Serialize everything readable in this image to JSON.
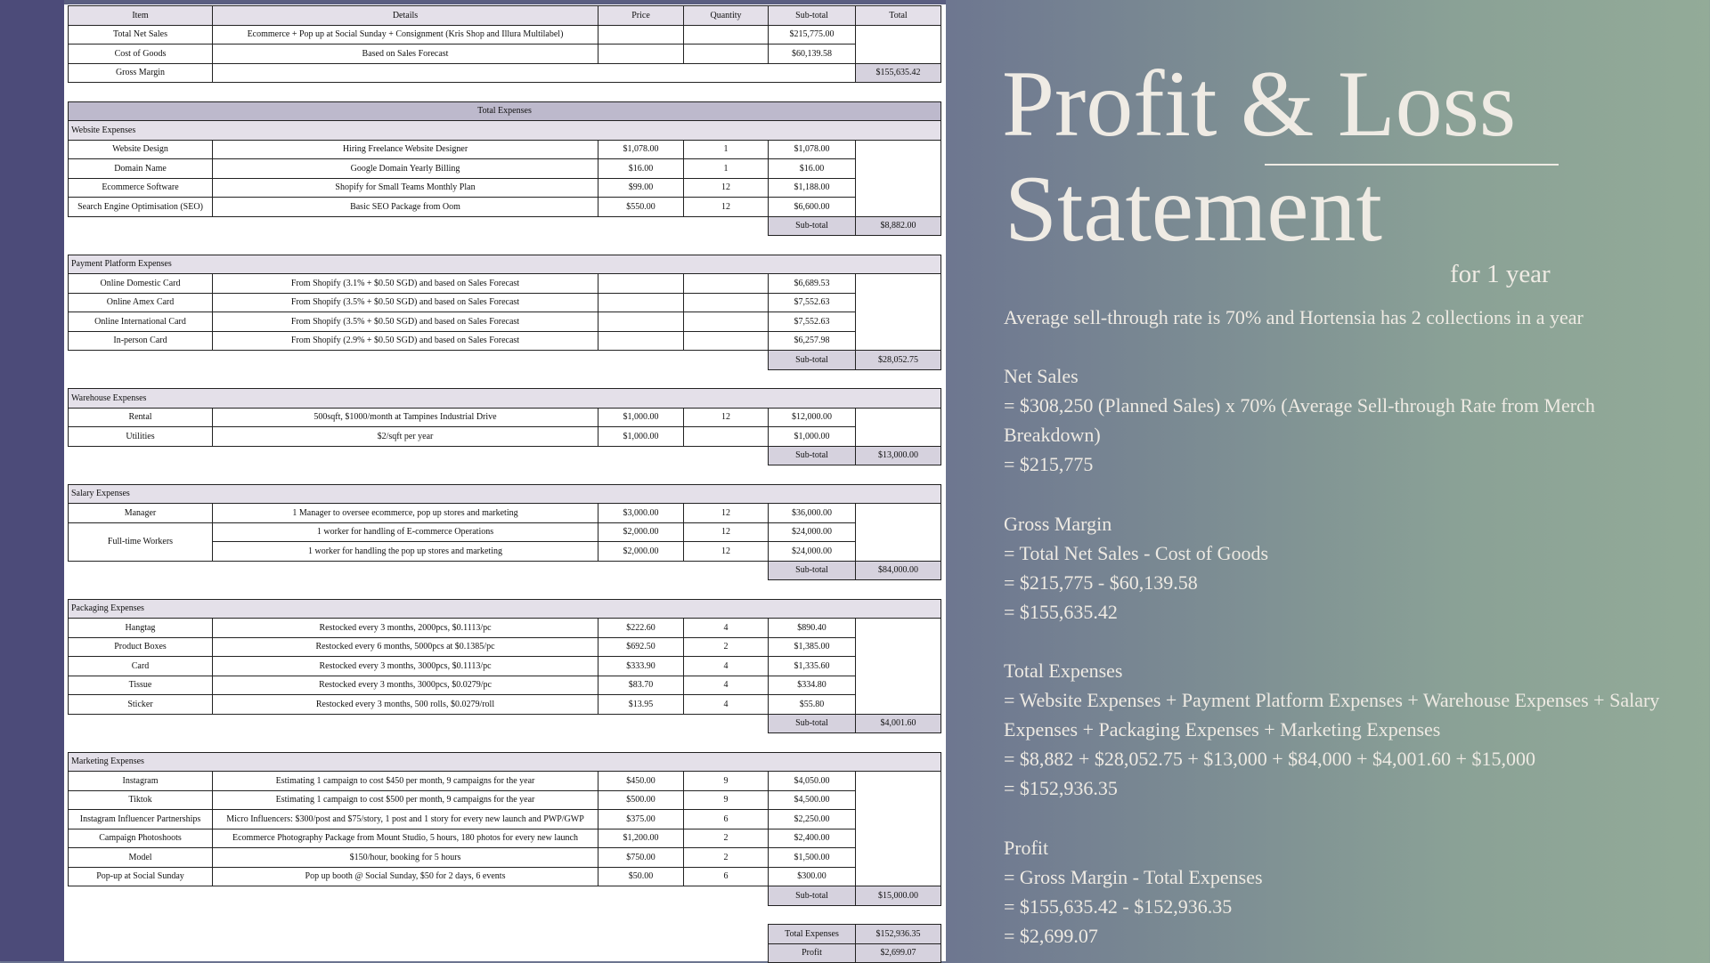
{
  "colors": {
    "strip": "#4c4b79",
    "header": "#e4e0e9",
    "title": "#bdb9cc",
    "shade": "#d6d2de",
    "text_light": "#efebe4"
  },
  "table": {
    "headers": [
      "Item",
      "Details",
      "Price",
      "Quantity",
      "Sub-total",
      "Total"
    ],
    "rows": [
      {
        "type": "header"
      },
      {
        "type": "item",
        "cells": [
          "Total Net Sales",
          "Ecommerce + Pop up at Social Sunday + Consignment (Kris Shop and Illura Multilabel)",
          "",
          "",
          "$215,775.00"
        ]
      },
      {
        "type": "item",
        "cells": [
          "Cost of Goods",
          "Based on Sales Forecast",
          "",
          "",
          "$60,139.58"
        ]
      },
      {
        "type": "gross",
        "cells": [
          "Gross Margin",
          "$155,635.42"
        ]
      },
      {
        "type": "blank"
      },
      {
        "type": "title",
        "label": "Total Expenses"
      },
      {
        "type": "section",
        "label": "Website Expenses"
      },
      {
        "type": "item",
        "cells": [
          "Website Design",
          "Hiring Freelance Website Designer",
          "$1,078.00",
          "1",
          "$1,078.00"
        ]
      },
      {
        "type": "item",
        "cells": [
          "Domain Name",
          "Google Domain Yearly Billing",
          "$16.00",
          "1",
          "$16.00"
        ]
      },
      {
        "type": "item",
        "cells": [
          "Ecommerce Software",
          "Shopify for Small Teams Monthly Plan",
          "$99.00",
          "12",
          "$1,188.00"
        ]
      },
      {
        "type": "item",
        "cells": [
          "Search Engine Optimisation (SEO)",
          "Basic SEO Package from Oom",
          "$550.00",
          "12",
          "$6,600.00"
        ]
      },
      {
        "type": "subtotal",
        "label": "Sub-total",
        "value": "$8,882.00"
      },
      {
        "type": "blank"
      },
      {
        "type": "section",
        "label": "Payment Platform Expenses"
      },
      {
        "type": "item",
        "cells": [
          "Online Domestic Card",
          "From Shopify (3.1% + $0.50 SGD) and based on Sales Forecast",
          "",
          "",
          "$6,689.53"
        ]
      },
      {
        "type": "item",
        "cells": [
          "Online Amex Card",
          "From Shopify (3.5% + $0.50 SGD) and based on Sales Forecast",
          "",
          "",
          "$7,552.63"
        ]
      },
      {
        "type": "item",
        "cells": [
          "Online International Card",
          "From Shopify (3.5% + $0.50 SGD) and based on Sales Forecast",
          "",
          "",
          "$7,552.63"
        ]
      },
      {
        "type": "item",
        "cells": [
          "In-person Card",
          "From Shopify (2.9% + $0.50 SGD) and based on Sales Forecast",
          "",
          "",
          "$6,257.98"
        ]
      },
      {
        "type": "subtotal",
        "label": "Sub-total",
        "value": "$28,052.75"
      },
      {
        "type": "blank"
      },
      {
        "type": "section",
        "label": "Warehouse Expenses"
      },
      {
        "type": "item",
        "cells": [
          "Rental",
          "500sqft, $1000/month at Tampines Industrial Drive",
          "$1,000.00",
          "12",
          "$12,000.00"
        ]
      },
      {
        "type": "item",
        "cells": [
          "Utilities",
          "$2/sqft per year",
          "$1,000.00",
          "",
          "$1,000.00"
        ]
      },
      {
        "type": "subtotal",
        "label": "Sub-total",
        "value": "$13,000.00"
      },
      {
        "type": "blank"
      },
      {
        "type": "section",
        "label": "Salary Expenses"
      },
      {
        "type": "item",
        "cells": [
          "Manager",
          "1 Manager to oversee ecommerce, pop up stores and marketing",
          "$3,000.00",
          "12",
          "$36,000.00"
        ]
      },
      {
        "type": "item",
        "span": "first",
        "cells": [
          "Full-time Workers",
          "1 worker for handling of E-commerce Operations",
          "$2,000.00",
          "12",
          "$24,000.00"
        ]
      },
      {
        "type": "item",
        "span": "last",
        "cells": [
          "",
          "1 worker for handling the pop up stores and marketing",
          "$2,000.00",
          "12",
          "$24,000.00"
        ]
      },
      {
        "type": "subtotal",
        "label": "Sub-total",
        "value": "$84,000.00"
      },
      {
        "type": "blank"
      },
      {
        "type": "section",
        "label": "Packaging Expenses"
      },
      {
        "type": "item",
        "cells": [
          "Hangtag",
          "Restocked every 3 months, 2000pcs, $0.1113/pc",
          "$222.60",
          "4",
          "$890.40"
        ]
      },
      {
        "type": "item",
        "cells": [
          "Product Boxes",
          "Restocked every 6 months, 5000pcs at $0.1385/pc",
          "$692.50",
          "2",
          "$1,385.00"
        ]
      },
      {
        "type": "item",
        "cells": [
          "Card",
          "Restocked every 3 months, 3000pcs, $0.1113/pc",
          "$333.90",
          "4",
          "$1,335.60"
        ]
      },
      {
        "type": "item",
        "cells": [
          "Tissue",
          "Restocked every 3 months, 3000pcs, $0.0279/pc",
          "$83.70",
          "4",
          "$334.80"
        ]
      },
      {
        "type": "item",
        "cells": [
          "Sticker",
          "Restocked every 3 months, 500 rolls, $0.0279/roll",
          "$13.95",
          "4",
          "$55.80"
        ]
      },
      {
        "type": "subtotal",
        "label": "Sub-total",
        "value": "$4,001.60"
      },
      {
        "type": "blank"
      },
      {
        "type": "section",
        "label": "Marketing Expenses"
      },
      {
        "type": "item",
        "cells": [
          "Instagram",
          "Estimating 1 campaign to cost $450 per month, 9 campaigns for the year",
          "$450.00",
          "9",
          "$4,050.00"
        ]
      },
      {
        "type": "item",
        "cells": [
          "Tiktok",
          "Estimating 1 campaign to cost $500 per month, 9 campaigns for the year",
          "$500.00",
          "9",
          "$4,500.00"
        ]
      },
      {
        "type": "item",
        "cells": [
          "Instagram Influencer Partnerships",
          "Micro Influencers: $300/post and $75/story, 1 post and 1 story for every new launch and PWP/GWP",
          "$375.00",
          "6",
          "$2,250.00"
        ]
      },
      {
        "type": "item",
        "cells": [
          "Campaign Photoshoots",
          "Ecommerce Photography Package from Mount Studio, 5 hours, 180 photos for every new launch",
          "$1,200.00",
          "2",
          "$2,400.00"
        ]
      },
      {
        "type": "item",
        "cells": [
          "Model",
          "$150/hour, booking for 5 hours",
          "$750.00",
          "2",
          "$1,500.00"
        ]
      },
      {
        "type": "item",
        "cells": [
          "Pop-up at Social Sunday",
          "Pop up booth @ Social Sunday, $50 for 2 days, 6 events",
          "$50.00",
          "6",
          "$300.00"
        ]
      },
      {
        "type": "subtotal",
        "label": "Sub-total",
        "value": "$15,000.00"
      },
      {
        "type": "blank"
      },
      {
        "type": "subtotal",
        "label": "Total Expenses",
        "value": "$152,936.35"
      },
      {
        "type": "subtotal",
        "label": "Profit",
        "value": "$2,699.07"
      }
    ]
  },
  "right": {
    "title_line1": "Profit & Loss",
    "title_line2": "Statement",
    "subtitle": "for 1 year",
    "intro": "Average sell-through rate is 70% and Hortensia has 2 collections in a year",
    "blocks": [
      {
        "heading": "Net Sales",
        "lines": [
          "= $308,250 (Planned Sales) x 70% (Average Sell-through Rate from Merch Breakdown)",
          "= $215,775"
        ]
      },
      {
        "heading": "Gross Margin",
        "lines": [
          "= Total Net Sales - Cost of Goods",
          "= $215,775 - $60,139.58",
          "= $155,635.42"
        ]
      },
      {
        "heading": "Total Expenses",
        "lines": [
          "= Website Expenses + Payment Platform Expenses + Warehouse Expenses + Salary Expenses + Packaging Expenses + Marketing Expenses",
          "= $8,882 + $28,052.75 + $13,000 + $84,000 + $4,001.60 + $15,000",
          "= $152,936.35"
        ]
      },
      {
        "heading": "Profit",
        "lines": [
          "= Gross Margin - Total Expenses",
          "= $155,635.42 - $152,936.35",
          "= $2,699.07"
        ]
      }
    ]
  }
}
